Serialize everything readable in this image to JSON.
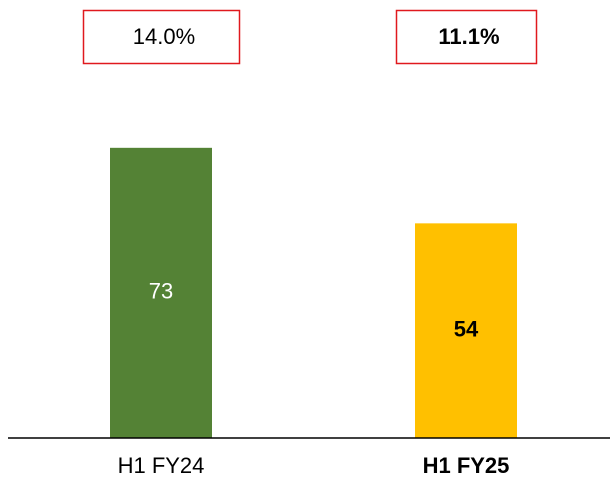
{
  "chart_data": {
    "type": "bar",
    "categories": [
      "H1 FY24",
      "H1 FY25"
    ],
    "values": [
      73,
      54
    ],
    "colors": [
      "#548235",
      "#ffc000"
    ],
    "ylim": [
      0,
      80
    ],
    "annotations": [
      {
        "value": 14.0,
        "label": "14.0%"
      },
      {
        "value": 11.1,
        "label": "11.1%"
      }
    ]
  }
}
